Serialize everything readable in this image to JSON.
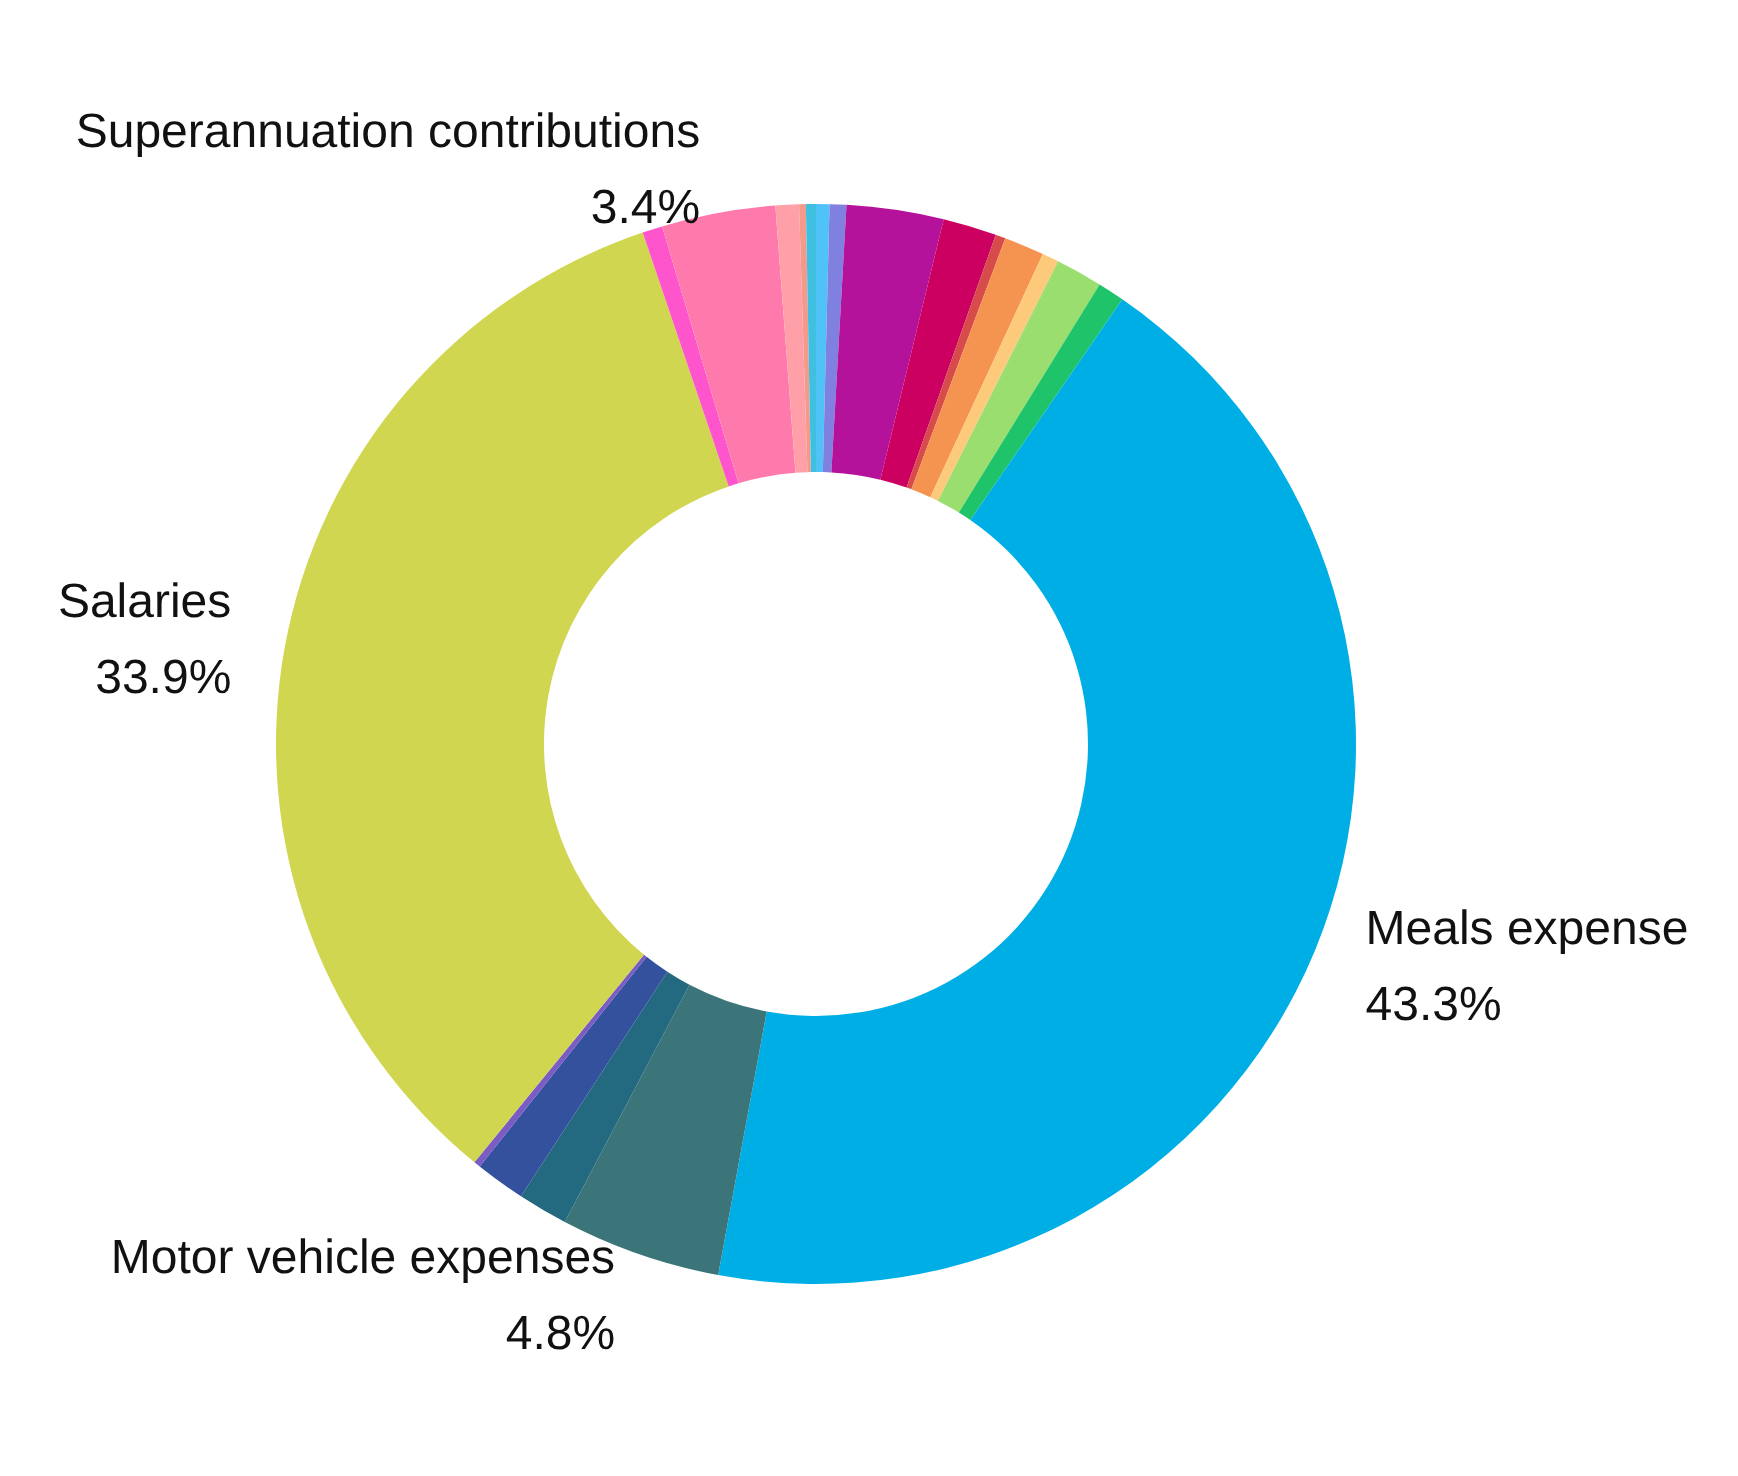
{
  "chart_data": {
    "type": "donut",
    "categories": [
      null,
      null,
      null,
      null,
      null,
      null,
      null,
      null,
      null,
      "Meals expense",
      "Motor vehicle expenses",
      null,
      null,
      null,
      "Salaries",
      null,
      "Superannuation contributions",
      null,
      null,
      null
    ],
    "values": [
      0.4,
      0.5,
      2.9,
      1.6,
      0.3,
      1.2,
      0.5,
      1.4,
      0.8,
      43.3,
      4.8,
      1.5,
      1.5,
      0.2,
      33.9,
      0.6,
      3.4,
      0.7,
      0.2,
      0.3
    ],
    "value_labels": [
      null,
      null,
      null,
      null,
      null,
      null,
      null,
      null,
      null,
      "43.3%",
      "4.8%",
      null,
      null,
      null,
      "33.9%",
      null,
      "3.4%",
      null,
      null,
      null
    ],
    "colors": [
      "#4fc3f7",
      "#8080e0",
      "#b5129b",
      "#cc0060",
      "#d84b4b",
      "#f59350",
      "#fdc97a",
      "#9ade70",
      "#1fc46a",
      "#00aee6",
      "#3b7579",
      "#236a80",
      "#33519c",
      "#7b5cc4",
      "#d0d64f",
      "#ff55cc",
      "#ff7aac",
      "#ffa0a8",
      "#f39a8a",
      "#40c0e0"
    ]
  }
}
